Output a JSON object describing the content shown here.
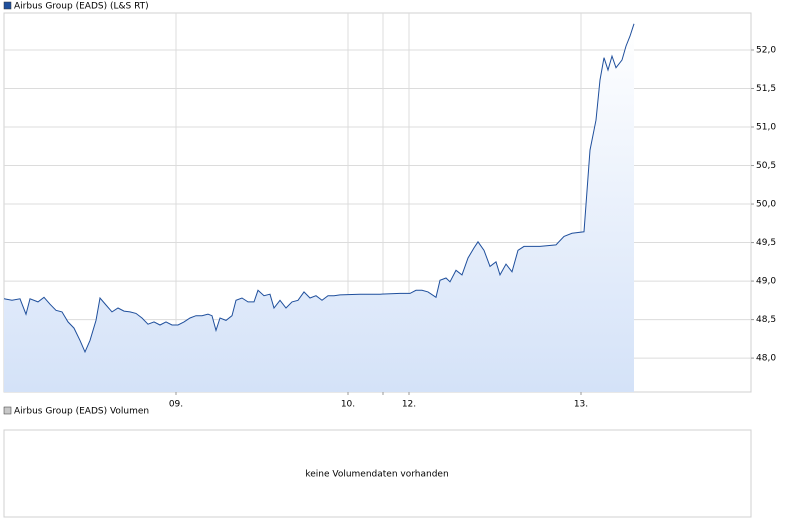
{
  "chart_data": [
    {
      "type": "line",
      "series": [
        {
          "name": "Airbus Group (EADS) (L&S RT)",
          "color": "#1f4f9c",
          "x": [
            0,
            8,
            16,
            22,
            26,
            34,
            40,
            46,
            52,
            58,
            64,
            70,
            76,
            81,
            86,
            92,
            96,
            102,
            108,
            114,
            120,
            126,
            132,
            138,
            144,
            150,
            156,
            162,
            168,
            174,
            180,
            186,
            192,
            198,
            204,
            208,
            212,
            216,
            222,
            228,
            232,
            238,
            244,
            250,
            254,
            260,
            266,
            270,
            276,
            282,
            288,
            294,
            300,
            306,
            312,
            318,
            324,
            330,
            336,
            356,
            376,
            396,
            406,
            412,
            418,
            424,
            432,
            436,
            442,
            446,
            452,
            458,
            464,
            470,
            474,
            480,
            486,
            492,
            496,
            502,
            508,
            514,
            520,
            536,
            552,
            560,
            568,
            580,
            586,
            592,
            596,
            600,
            604,
            608,
            612,
            618,
            622,
            626,
            630
          ],
          "values": [
            48.77,
            48.75,
            48.77,
            48.57,
            48.77,
            48.73,
            48.79,
            48.7,
            48.62,
            48.6,
            48.47,
            48.39,
            48.23,
            48.08,
            48.23,
            48.49,
            48.78,
            48.69,
            48.6,
            48.65,
            48.61,
            48.6,
            48.58,
            48.52,
            48.44,
            48.47,
            48.43,
            48.47,
            48.43,
            48.43,
            48.47,
            48.52,
            48.55,
            48.55,
            48.57,
            48.55,
            48.36,
            48.52,
            48.49,
            48.55,
            48.75,
            48.78,
            48.73,
            48.73,
            48.88,
            48.81,
            48.83,
            48.65,
            48.75,
            48.65,
            48.73,
            48.75,
            48.86,
            48.78,
            48.81,
            48.75,
            48.81,
            48.81,
            48.82,
            48.83,
            48.83,
            48.84,
            48.84,
            48.88,
            48.88,
            48.86,
            48.79,
            49.01,
            49.04,
            48.99,
            49.14,
            49.08,
            49.3,
            49.43,
            49.51,
            49.4,
            49.19,
            49.25,
            49.08,
            49.22,
            49.12,
            49.4,
            49.45,
            49.45,
            49.47,
            49.58,
            49.62,
            49.64,
            50.7,
            51.09,
            51.61,
            51.9,
            51.74,
            51.92,
            51.77,
            51.87,
            52.05,
            52.18,
            52.34
          ]
        }
      ],
      "xlim": [
        0,
        747
      ],
      "xticks": [
        {
          "value": 172,
          "label": "09."
        },
        {
          "value": 344,
          "label": "10."
        },
        {
          "value": 379,
          "label": null
        },
        {
          "value": 405,
          "label": "12."
        },
        {
          "value": 577,
          "label": "13."
        }
      ],
      "ylim": [
        47.56,
        52.48
      ],
      "yticks": [
        {
          "value": 48.0,
          "label": "48,0"
        },
        {
          "value": 48.5,
          "label": "48,5"
        },
        {
          "value": 49.0,
          "label": "49,0"
        },
        {
          "value": 49.5,
          "label": "49,5"
        },
        {
          "value": 50.0,
          "label": "50,0"
        },
        {
          "value": 50.5,
          "label": "50,5"
        },
        {
          "value": 51.0,
          "label": "51,0"
        },
        {
          "value": 51.5,
          "label": "51,5"
        },
        {
          "value": 52.0,
          "label": "52,0"
        }
      ],
      "grid": true,
      "fill": "#d4e2f8"
    },
    {
      "type": "bar",
      "series": [
        {
          "name": "Airbus Group (EADS) Volumen",
          "color": "#c8c8c8",
          "values": []
        }
      ],
      "annotation": "keine Volumendaten vorhanden"
    }
  ]
}
